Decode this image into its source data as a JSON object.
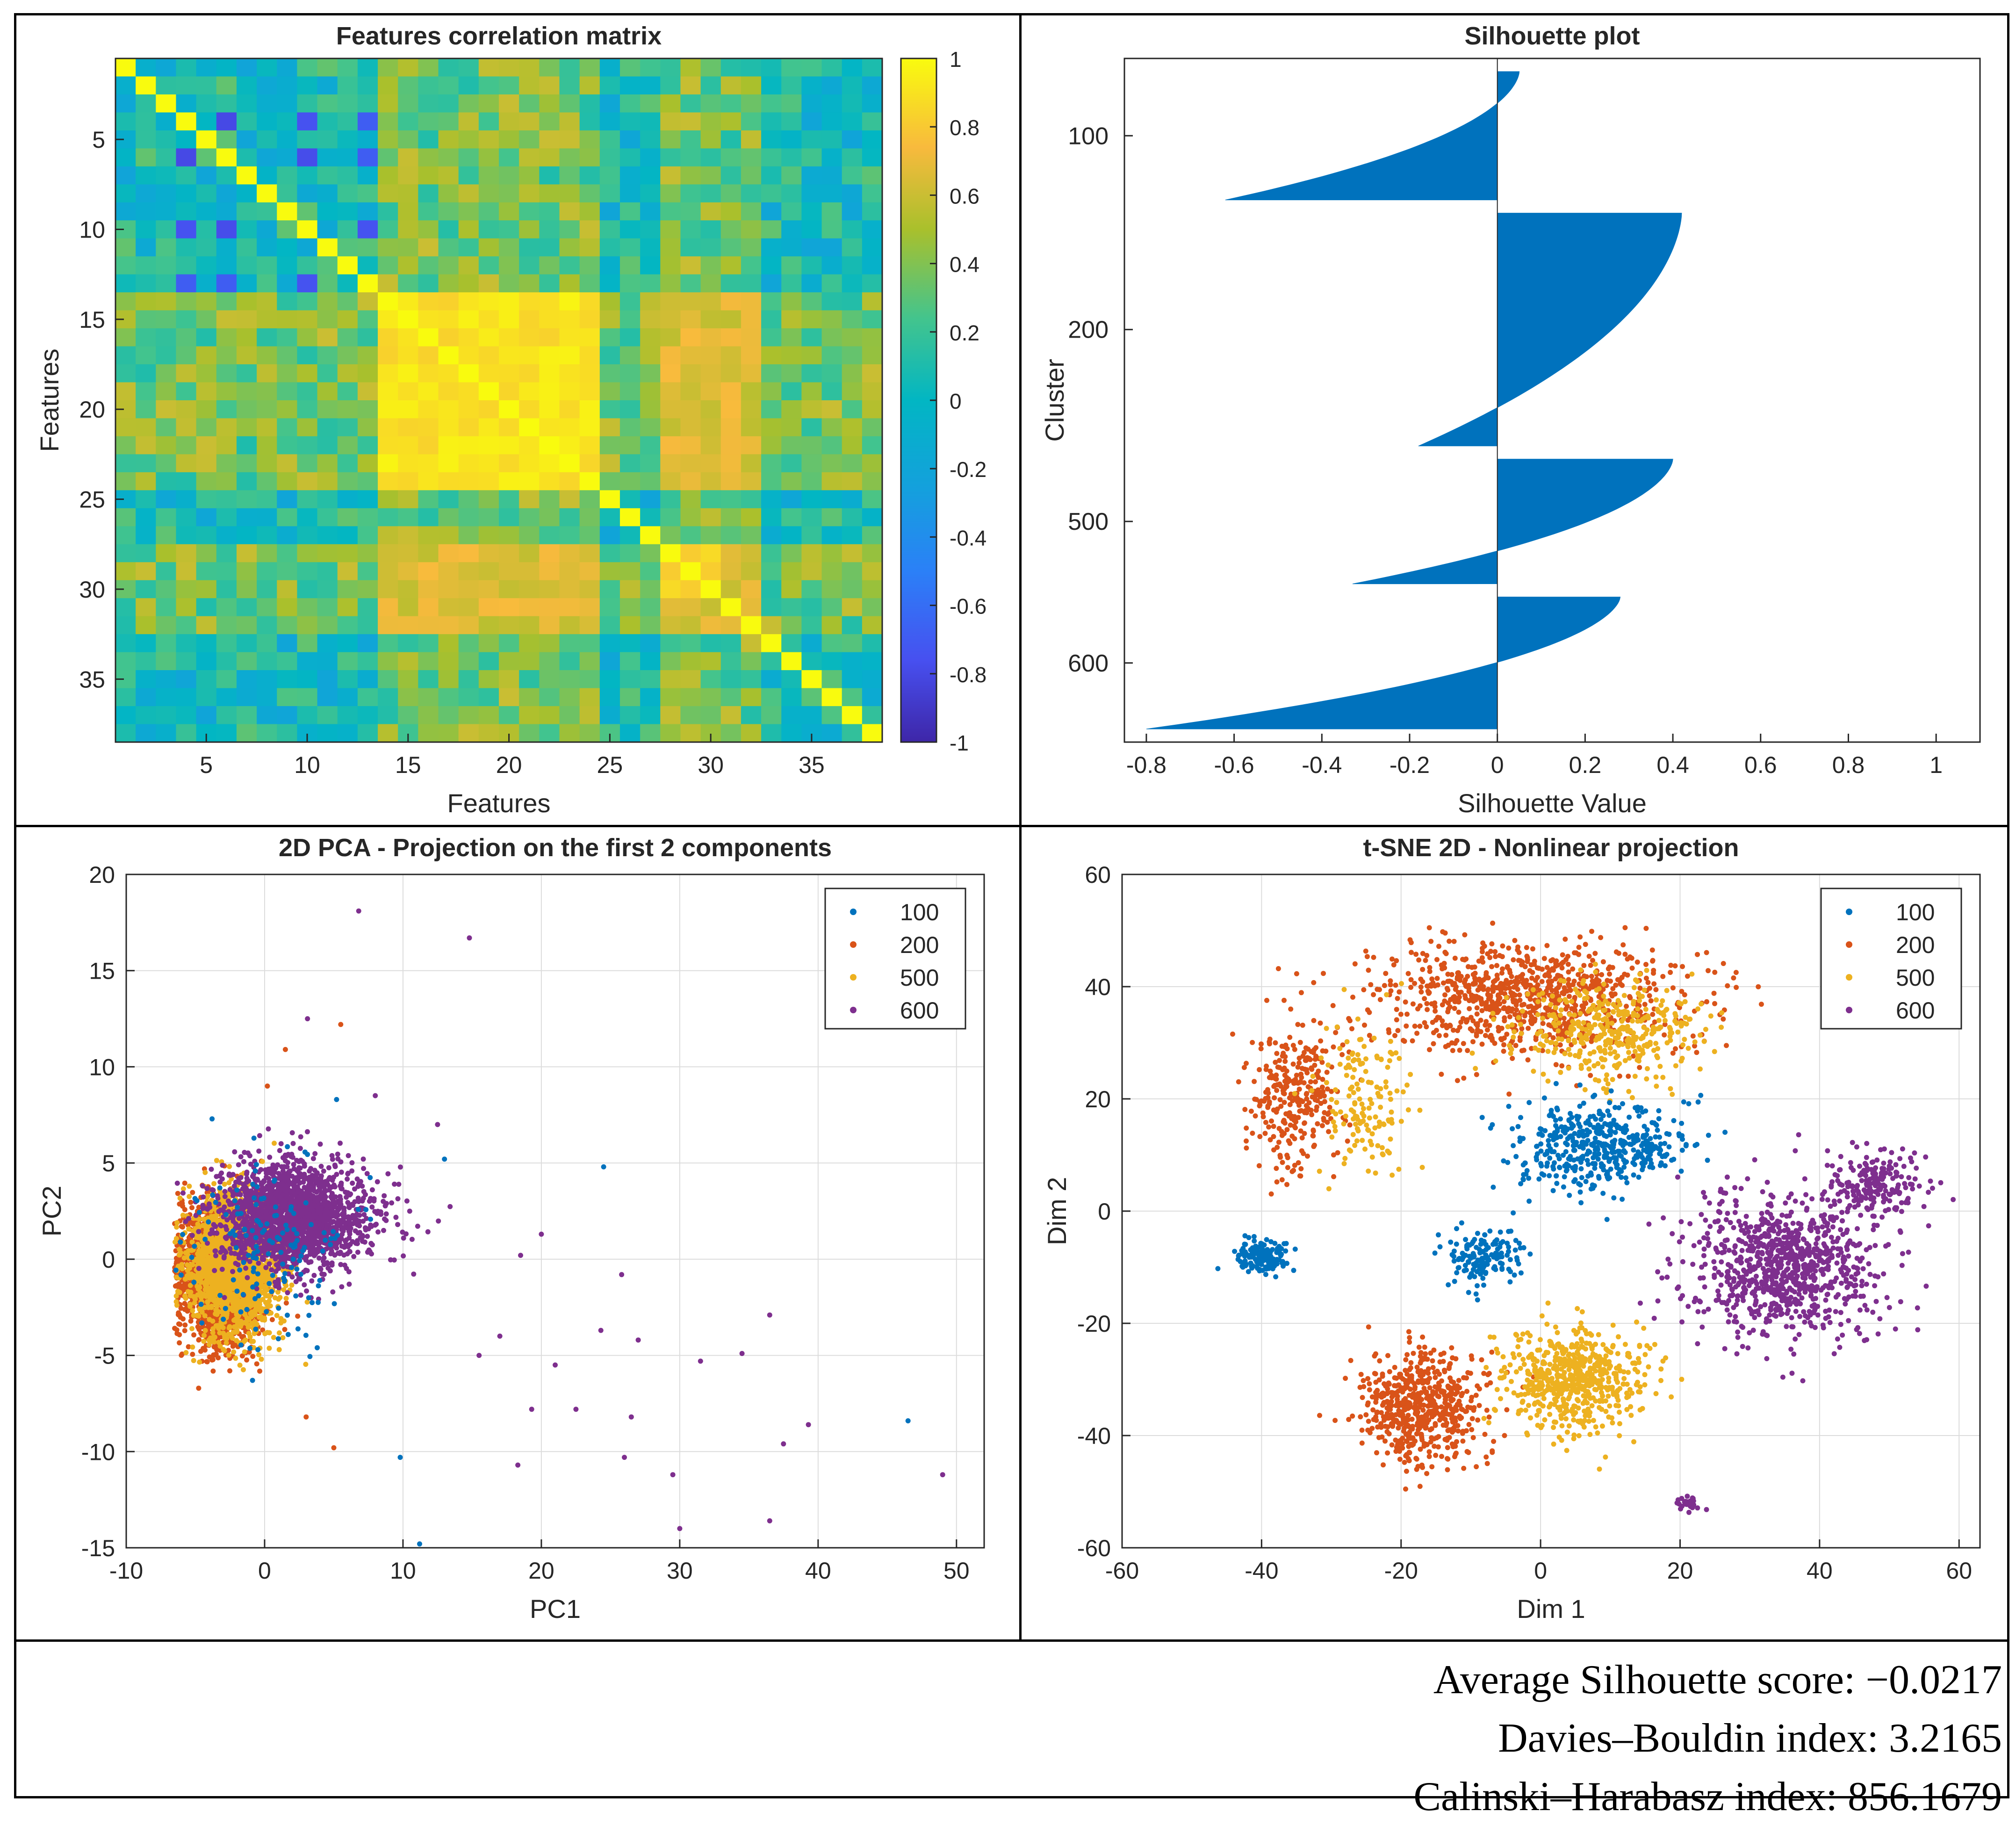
{
  "colors": {
    "c100": "#0072BD",
    "c200": "#D95319",
    "c500": "#EDB120",
    "c600": "#7E2F8E",
    "silhouette": "#0072BD"
  },
  "metrics": {
    "silhouette": "Average Silhouette score: −0.0217",
    "davies": "Davies–Bouldin index: 3.2165",
    "calinski": "Calinski–Harabasz index: 856.1679"
  },
  "chart_data": [
    {
      "type": "heatmap",
      "title": "Features correlation matrix",
      "xlabel": "Features",
      "ylabel": "Features",
      "n": 38,
      "xticks": [
        5,
        10,
        15,
        20,
        25,
        30,
        35
      ],
      "yticks": [
        5,
        10,
        15,
        20,
        25,
        30,
        35
      ],
      "colorbar_range": [
        -1,
        1
      ],
      "colorbar_ticks": [
        "1",
        "0.8",
        "0.6",
        "0.4",
        "0.2",
        "0",
        "-0.2",
        "-0.4",
        "-0.6",
        "-0.8",
        "-1"
      ],
      "colormap": "parula",
      "blocks": [
        {
          "range": [
            14,
            24
          ],
          "value": 0.9
        },
        {
          "range": [
            28,
            30
          ],
          "value": 0.85
        },
        {
          "range": [
            31,
            32
          ],
          "value": 0.7
        }
      ],
      "cross_block_value": 0.65,
      "strong_negative_features": [
        4,
        6,
        10,
        13
      ]
    },
    {
      "type": "bar",
      "subtype": "silhouette",
      "title": "Silhouette plot",
      "xlabel": "Silhouette Value",
      "ylabel": "Cluster",
      "xlim": [
        -0.85,
        1.1
      ],
      "xticks": [
        "-0.8",
        "-0.6",
        "-0.4",
        "-0.2",
        "0",
        "0.2",
        "0.4",
        "0.6",
        "0.8",
        "1"
      ],
      "yticks": [
        "100",
        "200",
        "500",
        "600"
      ],
      "clusters": [
        {
          "name": "100",
          "size": 70,
          "max": 0.05,
          "min": -0.62
        },
        {
          "name": "200",
          "size": 127,
          "max": 0.42,
          "min": -0.18
        },
        {
          "name": "500",
          "size": 68,
          "max": 0.4,
          "min": -0.33
        },
        {
          "name": "600",
          "size": 72,
          "max": 0.28,
          "min": -0.8
        }
      ]
    },
    {
      "type": "scatter",
      "title": "2D PCA - Projection on the first 2 components",
      "xlabel": "PC1",
      "ylabel": "PC2",
      "xlim": [
        -10,
        52
      ],
      "ylim": [
        -15,
        20
      ],
      "xticks": [
        -10,
        0,
        10,
        20,
        30,
        40,
        50
      ],
      "yticks": [
        -15,
        -10,
        -5,
        0,
        5,
        10,
        15,
        20
      ],
      "legend": [
        "100",
        "200",
        "500",
        "600"
      ],
      "legend_position": "top-right",
      "grid": true,
      "series": [
        {
          "name": "200",
          "center": [
            -3.2,
            -0.8
          ],
          "spread": [
            1.5,
            1.8
          ],
          "count": 1800
        },
        {
          "name": "500",
          "center": [
            -2.2,
            -0.3
          ],
          "spread": [
            1.6,
            1.8
          ],
          "count": 1800
        },
        {
          "name": "600",
          "center": [
            1.5,
            2.2
          ],
          "spread": [
            2.4,
            1.4
          ],
          "count": 1800
        },
        {
          "name": "100",
          "center": [
            0.5,
            0.5
          ],
          "spread": [
            3.0,
            2.5
          ],
          "count": 150
        }
      ],
      "outliers": {
        "100": [
          [
            24.5,
            4.8
          ],
          [
            46.5,
            -8.4
          ],
          [
            11.2,
            -14.8
          ],
          [
            13,
            5.2
          ],
          [
            9.8,
            -10.3
          ],
          [
            5.2,
            8.3
          ]
        ],
        "200": [
          [
            5.5,
            12.2
          ],
          [
            1.5,
            10.9
          ],
          [
            0.2,
            9
          ],
          [
            3,
            -8.2
          ],
          [
            5,
            -9.8
          ]
        ],
        "600": [
          [
            6.8,
            18.1
          ],
          [
            14.8,
            16.7
          ],
          [
            3.1,
            12.5
          ],
          [
            8,
            8.5
          ],
          [
            12.5,
            7
          ],
          [
            31.5,
            -5.3
          ],
          [
            34.5,
            -4.9
          ],
          [
            36.5,
            -2.9
          ],
          [
            39.3,
            -8.6
          ],
          [
            37.5,
            -9.6
          ],
          [
            49,
            -11.2
          ],
          [
            36.5,
            -13.6
          ],
          [
            30,
            -14
          ],
          [
            29.5,
            -11.2
          ],
          [
            26,
            -10.3
          ],
          [
            24.3,
            -3.7
          ],
          [
            25.8,
            -0.8
          ],
          [
            26.5,
            -8.2
          ],
          [
            27,
            -4.2
          ],
          [
            21,
            -5.5
          ],
          [
            22.5,
            -7.8
          ],
          [
            19.3,
            -7.8
          ],
          [
            18.3,
            -10.7
          ],
          [
            18.5,
            0.2
          ],
          [
            20,
            1.3
          ],
          [
            17,
            -4
          ],
          [
            15.5,
            -5
          ]
        ]
      }
    },
    {
      "type": "scatter",
      "title": "t-SNE 2D - Nonlinear projection",
      "xlabel": "Dim 1",
      "ylabel": "Dim 2",
      "xlim": [
        -60,
        63
      ],
      "ylim": [
        -60,
        60
      ],
      "xticks": [
        -60,
        -40,
        -20,
        0,
        20,
        40,
        60
      ],
      "yticks": [
        -60,
        -40,
        -20,
        0,
        20,
        40,
        60
      ],
      "legend": [
        "100",
        "200",
        "500",
        "600"
      ],
      "legend_position": "top-right",
      "grid": true,
      "clusters": [
        {
          "series": "200",
          "center": [
            -2,
            38
          ],
          "spread": [
            22,
            9
          ],
          "count": 900
        },
        {
          "series": "200",
          "center": [
            -35,
            20
          ],
          "spread": [
            6,
            12
          ],
          "count": 300
        },
        {
          "series": "200",
          "center": [
            -17,
            -35
          ],
          "spread": [
            8,
            9
          ],
          "count": 600
        },
        {
          "series": "500",
          "center": [
            5,
            -30
          ],
          "spread": [
            9,
            8
          ],
          "count": 600
        },
        {
          "series": "500",
          "center": [
            10,
            32
          ],
          "spread": [
            12,
            8
          ],
          "count": 400
        },
        {
          "series": "500",
          "center": [
            -25,
            20
          ],
          "spread": [
            6,
            12
          ],
          "count": 150
        },
        {
          "series": "100",
          "center": [
            8,
            12
          ],
          "spread": [
            11,
            7
          ],
          "count": 450
        },
        {
          "series": "100",
          "center": [
            -40,
            -8
          ],
          "spread": [
            3.5,
            3
          ],
          "count": 150
        },
        {
          "series": "100",
          "center": [
            -8,
            -8
          ],
          "spread": [
            6,
            5
          ],
          "count": 150
        },
        {
          "series": "600",
          "center": [
            35,
            -10
          ],
          "spread": [
            12,
            12
          ],
          "count": 900
        },
        {
          "series": "600",
          "center": [
            48,
            5
          ],
          "spread": [
            6,
            6
          ],
          "count": 200
        },
        {
          "series": "600",
          "center": [
            21,
            -52
          ],
          "spread": [
            1.5,
            1.5
          ],
          "count": 30
        }
      ]
    }
  ]
}
